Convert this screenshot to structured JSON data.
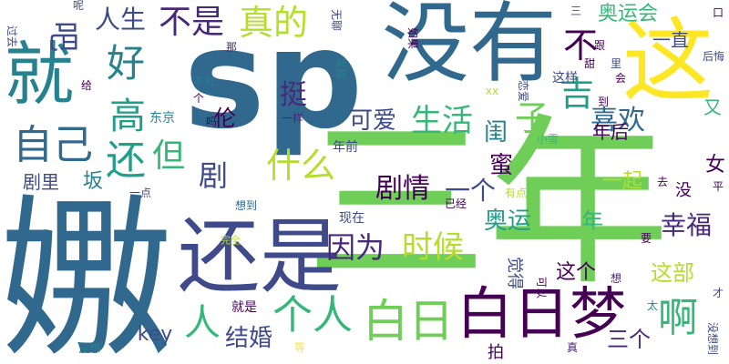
{
  "colors": {
    "background": "#ffffff",
    "palette": [
      "#440154",
      "#482878",
      "#3e4a89",
      "#31688e",
      "#26828e",
      "#1f9e89",
      "#35b779",
      "#6ece58",
      "#b5de2b",
      "#fde725"
    ]
  },
  "words": [
    {
      "text": "sp",
      "color": "#31688e"
    },
    {
      "text": "三年",
      "color": "#6ece58"
    },
    {
      "text": "没有",
      "color": "#31688e"
    },
    {
      "text": "嫐",
      "color": "#31688e"
    },
    {
      "text": "就",
      "color": "#26828e"
    },
    {
      "text": "这",
      "color": "#fde725"
    },
    {
      "text": "还是",
      "color": "#3e4a89"
    },
    {
      "text": "白日梦",
      "color": "#440154"
    },
    {
      "text": "白日",
      "color": "#6ece58"
    },
    {
      "text": "个人",
      "color": "#35b779"
    },
    {
      "text": "真的",
      "color": "#b5de2b"
    },
    {
      "text": "不是",
      "color": "#482878"
    },
    {
      "text": "人生",
      "color": "#3e4a89"
    },
    {
      "text": "吧",
      "color": "#3e4a89"
    },
    {
      "text": "好",
      "color": "#26828e"
    },
    {
      "text": "自己",
      "color": "#31688e"
    },
    {
      "text": "高",
      "color": "#1f9e89"
    },
    {
      "text": "还",
      "color": "#1f9e89"
    },
    {
      "text": "但",
      "color": "#35b779"
    },
    {
      "text": "剧",
      "color": "#3e4a89"
    },
    {
      "text": "什么",
      "color": "#b5de2b"
    },
    {
      "text": "挺",
      "color": "#482878"
    },
    {
      "text": "伦",
      "color": "#440154"
    },
    {
      "text": "可爱",
      "color": "#3e4a89"
    },
    {
      "text": "生活",
      "color": "#35b779"
    },
    {
      "text": "闺",
      "color": "#26828e"
    },
    {
      "text": "蜜",
      "color": "#440154"
    },
    {
      "text": "子",
      "color": "#6ece58"
    },
    {
      "text": "吉",
      "color": "#1f9e89"
    },
    {
      "text": "不",
      "color": "#440154"
    },
    {
      "text": "剧情",
      "color": "#440154"
    },
    {
      "text": "一个",
      "color": "#3e4a89"
    },
    {
      "text": "因为",
      "color": "#482878"
    },
    {
      "text": "时候",
      "color": "#b5de2b"
    },
    {
      "text": "喜欢",
      "color": "#31688e"
    },
    {
      "text": "年后",
      "color": "#440154"
    },
    {
      "text": "奥运会",
      "color": "#35b779"
    },
    {
      "text": "一直",
      "color": "#3e4a89"
    },
    {
      "text": "这样",
      "color": "#3e4a89"
    },
    {
      "text": "一起",
      "color": "#b5de2b"
    },
    {
      "text": "奥运",
      "color": "#1f9e89"
    },
    {
      "text": "年",
      "color": "#35b779"
    },
    {
      "text": "幸福",
      "color": "#482878"
    },
    {
      "text": "这个",
      "color": "#440154"
    },
    {
      "text": "这部",
      "color": "#b5de2b"
    },
    {
      "text": "啊",
      "color": "#35b779"
    },
    {
      "text": "人",
      "color": "#35b779"
    },
    {
      "text": "结婚",
      "color": "#3e4a89"
    },
    {
      "text": "三个",
      "color": "#482878"
    },
    {
      "text": "key",
      "color": "#3e4a89"
    },
    {
      "text": "女",
      "color": "#440154"
    },
    {
      "text": "又",
      "color": "#35b779"
    },
    {
      "text": "没",
      "color": "#440154"
    },
    {
      "text": "坂",
      "color": "#26828e"
    },
    {
      "text": "剧里",
      "color": "#3e4a89"
    },
    {
      "text": "东京",
      "color": "#26828e"
    },
    {
      "text": "一样",
      "color": "#482878"
    },
    {
      "text": "年前",
      "color": "#3e4a89"
    },
    {
      "text": "小雪",
      "color": "#35b779"
    },
    {
      "text": "现在",
      "color": "#3e4a89"
    },
    {
      "text": "有点",
      "color": "#b5de2b"
    },
    {
      "text": "已经",
      "color": "#440154"
    },
    {
      "text": "一点",
      "color": "#3e4a89"
    },
    {
      "text": "想到",
      "color": "#31688e"
    },
    {
      "text": "完全",
      "color": "#b5de2b"
    },
    {
      "text": "就是",
      "color": "#440154"
    },
    {
      "text": "没想",
      "color": "#26828e"
    },
    {
      "text": "等",
      "color": "#fde725"
    },
    {
      "text": "真",
      "color": "#482878"
    },
    {
      "text": "拍",
      "color": "#440154"
    },
    {
      "text": "觉得",
      "color": "#3e4a89"
    },
    {
      "text": "要",
      "color": "#440154"
    },
    {
      "text": "可以",
      "color": "#440154"
    },
    {
      "text": "想",
      "color": "#482878"
    },
    {
      "text": "太",
      "color": "#26828e"
    },
    {
      "text": "去",
      "color": "#440154"
    },
    {
      "text": "平",
      "color": "#440154"
    },
    {
      "text": "才",
      "color": "#3e4a89"
    },
    {
      "text": "没想到",
      "color": "#3e4a89"
    },
    {
      "text": "会",
      "color": "#440154"
    },
    {
      "text": "到",
      "color": "#440154"
    },
    {
      "text": "恋爱",
      "color": "#3e4a89"
    },
    {
      "text": "xx",
      "color": "#b5de2b"
    },
    {
      "text": "甜",
      "color": "#440154"
    },
    {
      "text": "里",
      "color": "#3e4a89"
    },
    {
      "text": "跟",
      "color": "#440154"
    },
    {
      "text": "如果",
      "color": "#440154"
    },
    {
      "text": "三",
      "color": "#3e4a89"
    },
    {
      "text": "口",
      "color": "#440154"
    },
    {
      "text": "后悔",
      "color": "#3e4a89"
    },
    {
      "text": "无聊",
      "color": "#3e4a89"
    },
    {
      "text": "发现",
      "color": "#26828e"
    },
    {
      "text": "那",
      "color": "#482878"
    },
    {
      "text": "呢",
      "color": "#3e4a89"
    },
    {
      "text": "过去",
      "color": "#3e4a89"
    },
    {
      "text": "给",
      "color": "#440154"
    },
    {
      "text": "不可",
      "color": "#26828e"
    },
    {
      "text": "个",
      "color": "#440154"
    },
    {
      "text": "吗",
      "color": "#440154"
    }
  ]
}
